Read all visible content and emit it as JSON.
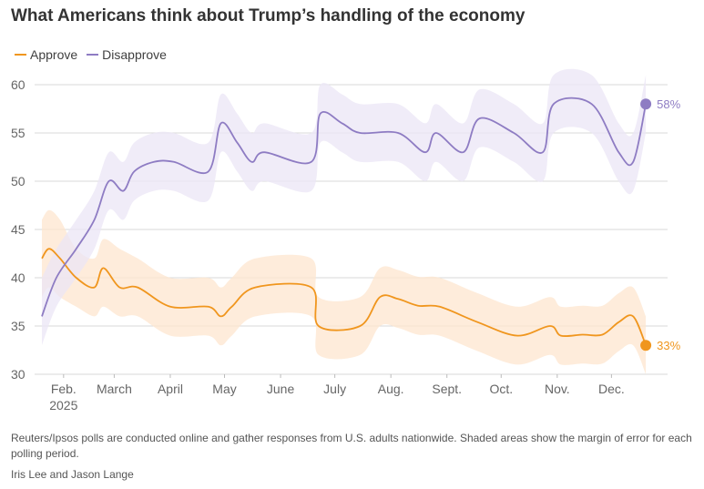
{
  "title": "What Americans think about Trump’s handling of the economy",
  "legend": [
    {
      "name": "Approve",
      "color": "#f0961e"
    },
    {
      "name": "Disapprove",
      "color": "#8e7cc3"
    }
  ],
  "chart_data": {
    "type": "line",
    "title": "What Americans think about Trump’s handling of the economy",
    "ylim": [
      30,
      60
    ],
    "yticks": [
      30,
      35,
      40,
      45,
      50,
      55,
      60
    ],
    "xlim": [
      "2025-01-20",
      "2025-12-28"
    ],
    "xticks": [
      {
        "date": "2025-02-01",
        "label": "Feb.",
        "sublabel": "2025"
      },
      {
        "date": "2025-03-01",
        "label": "March"
      },
      {
        "date": "2025-04-01",
        "label": "April"
      },
      {
        "date": "2025-05-01",
        "label": "May"
      },
      {
        "date": "2025-06-01",
        "label": "June"
      },
      {
        "date": "2025-07-01",
        "label": "July"
      },
      {
        "date": "2025-08-01",
        "label": "Aug."
      },
      {
        "date": "2025-09-01",
        "label": "Sept."
      },
      {
        "date": "2025-10-01",
        "label": "Oct."
      },
      {
        "date": "2025-11-01",
        "label": "Nov."
      },
      {
        "date": "2025-12-01",
        "label": "Dec."
      }
    ],
    "grid": true,
    "legend_position": "top-left",
    "series": [
      {
        "name": "Approve",
        "color": "#f0961e",
        "band_color": "#fde6cf",
        "end_label": "33%",
        "points": [
          {
            "x": "2025-01-20",
            "y": 42,
            "lo": 38,
            "hi": 46
          },
          {
            "x": "2025-01-24",
            "y": 43,
            "lo": 39,
            "hi": 47
          },
          {
            "x": "2025-01-30",
            "y": 42,
            "lo": 38,
            "hi": 46
          },
          {
            "x": "2025-02-08",
            "y": 40,
            "lo": 37,
            "hi": 43
          },
          {
            "x": "2025-02-18",
            "y": 39,
            "lo": 36,
            "hi": 42
          },
          {
            "x": "2025-02-23",
            "y": 41,
            "lo": 37,
            "hi": 44
          },
          {
            "x": "2025-03-04",
            "y": 39,
            "lo": 36,
            "hi": 43
          },
          {
            "x": "2025-03-14",
            "y": 39,
            "lo": 36,
            "hi": 42
          },
          {
            "x": "2025-04-01",
            "y": 37,
            "lo": 34,
            "hi": 40
          },
          {
            "x": "2025-04-22",
            "y": 37,
            "lo": 34,
            "hi": 40
          },
          {
            "x": "2025-04-29",
            "y": 36,
            "lo": 33,
            "hi": 39
          },
          {
            "x": "2025-05-05",
            "y": 37,
            "lo": 34,
            "hi": 40
          },
          {
            "x": "2025-05-18",
            "y": 39,
            "lo": 36,
            "hi": 42
          },
          {
            "x": "2025-06-18",
            "y": 39,
            "lo": 36,
            "hi": 42
          },
          {
            "x": "2025-06-22",
            "y": 35,
            "lo": 32,
            "hi": 38
          },
          {
            "x": "2025-07-15",
            "y": 35,
            "lo": 32,
            "hi": 38
          },
          {
            "x": "2025-07-26",
            "y": 38,
            "lo": 35,
            "hi": 41
          },
          {
            "x": "2025-08-05",
            "y": 37.8,
            "lo": 34.8,
            "hi": 40.8
          },
          {
            "x": "2025-08-16",
            "y": 37.1,
            "lo": 34.1,
            "hi": 40.1
          },
          {
            "x": "2025-08-28",
            "y": 37,
            "lo": 34,
            "hi": 40
          },
          {
            "x": "2025-09-18",
            "y": 35.4,
            "lo": 32.4,
            "hi": 38.4
          },
          {
            "x": "2025-10-10",
            "y": 34,
            "lo": 31,
            "hi": 37
          },
          {
            "x": "2025-10-28",
            "y": 35,
            "lo": 32,
            "hi": 38
          },
          {
            "x": "2025-11-03",
            "y": 34,
            "lo": 31,
            "hi": 37
          },
          {
            "x": "2025-11-15",
            "y": 34.1,
            "lo": 31.1,
            "hi": 37.1
          },
          {
            "x": "2025-11-26",
            "y": 34.1,
            "lo": 31.1,
            "hi": 37.1
          },
          {
            "x": "2025-12-05",
            "y": 35.4,
            "lo": 32.4,
            "hi": 38.4
          },
          {
            "x": "2025-12-13",
            "y": 36,
            "lo": 33,
            "hi": 39
          },
          {
            "x": "2025-12-20",
            "y": 33,
            "lo": 30,
            "hi": 36
          }
        ]
      },
      {
        "name": "Disapprove",
        "color": "#8e7cc3",
        "band_color": "#ebe6f5",
        "end_label": "58%",
        "points": [
          {
            "x": "2025-01-20",
            "y": 36,
            "lo": 33,
            "hi": 40
          },
          {
            "x": "2025-01-28",
            "y": 40,
            "lo": 37,
            "hi": 43
          },
          {
            "x": "2025-02-08",
            "y": 43,
            "lo": 40,
            "hi": 46
          },
          {
            "x": "2025-02-18",
            "y": 46,
            "lo": 43,
            "hi": 49
          },
          {
            "x": "2025-02-26",
            "y": 50,
            "lo": 47,
            "hi": 53
          },
          {
            "x": "2025-03-06",
            "y": 49,
            "lo": 46,
            "hi": 52
          },
          {
            "x": "2025-03-12",
            "y": 51,
            "lo": 48,
            "hi": 54
          },
          {
            "x": "2025-03-23",
            "y": 52,
            "lo": 49,
            "hi": 55
          },
          {
            "x": "2025-04-03",
            "y": 52,
            "lo": 49,
            "hi": 55
          },
          {
            "x": "2025-04-22",
            "y": 51,
            "lo": 48,
            "hi": 54
          },
          {
            "x": "2025-04-29",
            "y": 56,
            "lo": 53,
            "hi": 59
          },
          {
            "x": "2025-05-08",
            "y": 54,
            "lo": 51,
            "hi": 57
          },
          {
            "x": "2025-05-16",
            "y": 52,
            "lo": 49,
            "hi": 55
          },
          {
            "x": "2025-05-23",
            "y": 53,
            "lo": 50,
            "hi": 56
          },
          {
            "x": "2025-06-18",
            "y": 52,
            "lo": 49,
            "hi": 55
          },
          {
            "x": "2025-06-23",
            "y": 57,
            "lo": 54,
            "hi": 60
          },
          {
            "x": "2025-07-05",
            "y": 56,
            "lo": 53,
            "hi": 59
          },
          {
            "x": "2025-07-15",
            "y": 55,
            "lo": 52,
            "hi": 58
          },
          {
            "x": "2025-08-05",
            "y": 55,
            "lo": 52,
            "hi": 58
          },
          {
            "x": "2025-08-20",
            "y": 53,
            "lo": 50,
            "hi": 56
          },
          {
            "x": "2025-08-26",
            "y": 55,
            "lo": 52,
            "hi": 58
          },
          {
            "x": "2025-09-10",
            "y": 53,
            "lo": 50,
            "hi": 56
          },
          {
            "x": "2025-09-19",
            "y": 56.5,
            "lo": 53.5,
            "hi": 59.5
          },
          {
            "x": "2025-10-08",
            "y": 55,
            "lo": 52,
            "hi": 58
          },
          {
            "x": "2025-10-24",
            "y": 53,
            "lo": 50,
            "hi": 56
          },
          {
            "x": "2025-10-30",
            "y": 58,
            "lo": 55,
            "hi": 61
          },
          {
            "x": "2025-11-20",
            "y": 58,
            "lo": 55,
            "hi": 61
          },
          {
            "x": "2025-12-05",
            "y": 53,
            "lo": 50,
            "hi": 56
          },
          {
            "x": "2025-12-13",
            "y": 52,
            "lo": 49,
            "hi": 55
          },
          {
            "x": "2025-12-20",
            "y": 58,
            "lo": 55,
            "hi": 61
          }
        ]
      }
    ]
  },
  "footnote": "Reuters/Ipsos polls are conducted online and gather responses from U.S. adults nationwide. Shaded areas show the margin of error for each polling period.",
  "byline": "Iris Lee and Jason Lange"
}
